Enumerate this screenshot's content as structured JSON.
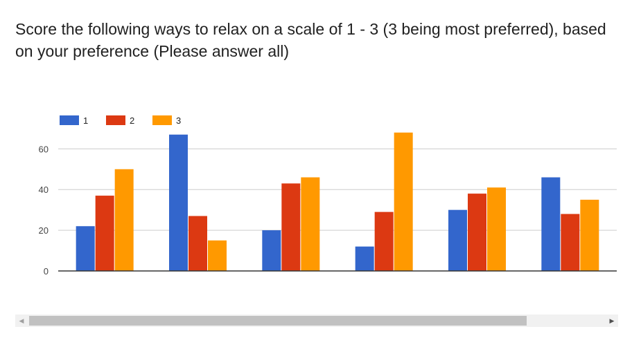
{
  "title": "Score the following ways to relax on a scale of 1 - 3 (3 being most preferred), based on your preference (Please answer all)",
  "scrollbar": {
    "left_arrow": "◀",
    "right_arrow": "▶"
  },
  "chart_data": {
    "type": "bar",
    "categories": [
      "",
      "",
      "",
      "",
      "",
      ""
    ],
    "series": [
      {
        "name": "1",
        "color": "#3366cc",
        "values": [
          22,
          67,
          20,
          12,
          30,
          46
        ]
      },
      {
        "name": "2",
        "color": "#dc3912",
        "values": [
          37,
          27,
          43,
          29,
          38,
          28
        ]
      },
      {
        "name": "3",
        "color": "#ff9900",
        "values": [
          50,
          15,
          46,
          68,
          41,
          35
        ]
      }
    ],
    "yticks": [
      0,
      20,
      40,
      60
    ],
    "ylim": [
      0,
      72
    ],
    "grid": true,
    "legend_position": "top-left"
  }
}
